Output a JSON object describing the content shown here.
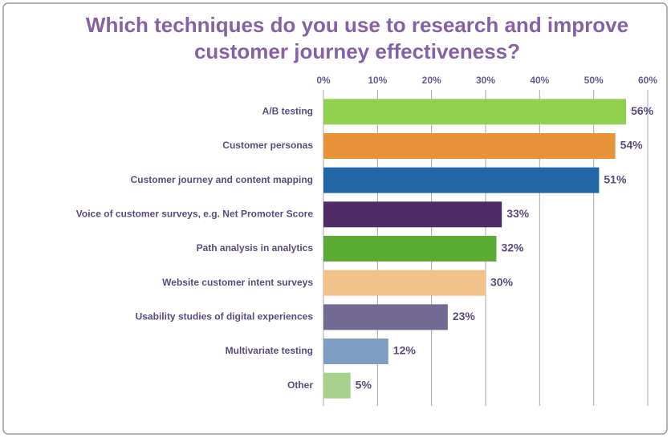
{
  "chart_data": {
    "type": "barh",
    "title": [
      "Which techniques do you use to research and improve",
      "customer journey effectiveness?"
    ],
    "categories": [
      "A/B testing",
      "Customer personas",
      "Customer journey and content mapping",
      "Voice of customer surveys, e.g. Net Promoter Score",
      "Path analysis in analytics",
      "Website customer intent surveys",
      "Usability studies of digital experiences",
      "Multivariate testing",
      "Other"
    ],
    "values": [
      56,
      54,
      51,
      33,
      32,
      30,
      23,
      12,
      5
    ],
    "value_labels": [
      "56%",
      "54%",
      "51%",
      "33%",
      "32%",
      "30%",
      "23%",
      "12%",
      "5%"
    ],
    "colors": [
      "#92d050",
      "#e8923a",
      "#2366a8",
      "#4f2a67",
      "#5aac35",
      "#f2c28c",
      "#736a93",
      "#7f9dc2",
      "#a9d18e"
    ],
    "xlim": [
      0,
      60
    ],
    "xticks": [
      {
        "value": 0,
        "label": "0%"
      },
      {
        "value": 10,
        "label": "10%"
      },
      {
        "value": 20,
        "label": "20%"
      },
      {
        "value": 30,
        "label": "30%"
      },
      {
        "value": 40,
        "label": "40%"
      },
      {
        "value": 50,
        "label": "50%"
      },
      {
        "value": 60,
        "label": "60%"
      }
    ],
    "grid": true
  }
}
